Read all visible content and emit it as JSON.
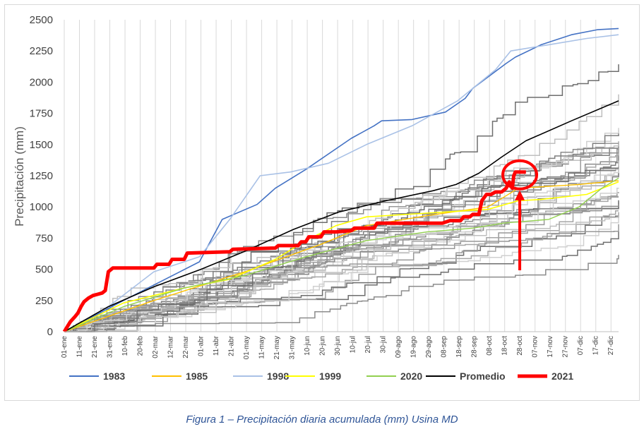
{
  "caption": "Figura 1 – Precipitación diaria acumulada (mm) Usina MD",
  "chart_data": {
    "type": "line",
    "title": "",
    "xlabel": "",
    "ylabel": "Precipitación (mm)",
    "ylim": [
      0,
      2500
    ],
    "yticks": [
      0,
      250,
      500,
      750,
      1000,
      1250,
      1500,
      1750,
      2000,
      2250,
      2500
    ],
    "grid": "vertical",
    "legend_position": "bottom",
    "x_ticks": [
      {
        "day": 1,
        "label": "01-ene"
      },
      {
        "day": 11,
        "label": "11-ene"
      },
      {
        "day": 21,
        "label": "21-ene"
      },
      {
        "day": 31,
        "label": "31-ene"
      },
      {
        "day": 41,
        "label": "10-feb"
      },
      {
        "day": 51,
        "label": "20-feb"
      },
      {
        "day": 61,
        "label": "02-mar"
      },
      {
        "day": 71,
        "label": "12-mar"
      },
      {
        "day": 81,
        "label": "22-mar"
      },
      {
        "day": 91,
        "label": "01-abr"
      },
      {
        "day": 101,
        "label": "11-abr"
      },
      {
        "day": 111,
        "label": "21-abr"
      },
      {
        "day": 121,
        "label": "01-may"
      },
      {
        "day": 131,
        "label": "11-may"
      },
      {
        "day": 141,
        "label": "21-may"
      },
      {
        "day": 151,
        "label": "31-may"
      },
      {
        "day": 161,
        "label": "10-jun"
      },
      {
        "day": 171,
        "label": "20-jun"
      },
      {
        "day": 181,
        "label": "30-jun"
      },
      {
        "day": 191,
        "label": "10-jul"
      },
      {
        "day": 201,
        "label": "20-jul"
      },
      {
        "day": 211,
        "label": "30-jul"
      },
      {
        "day": 221,
        "label": "09-ago"
      },
      {
        "day": 231,
        "label": "19-ago"
      },
      {
        "day": 241,
        "label": "29-ago"
      },
      {
        "day": 251,
        "label": "08-sep"
      },
      {
        "day": 261,
        "label": "18-sep"
      },
      {
        "day": 271,
        "label": "28-sep"
      },
      {
        "day": 281,
        "label": "08-oct"
      },
      {
        "day": 291,
        "label": "18-oct"
      },
      {
        "day": 301,
        "label": "28-oct"
      },
      {
        "day": 311,
        "label": "07-nov"
      },
      {
        "day": 321,
        "label": "17-nov"
      },
      {
        "day": 331,
        "label": "27-nov"
      },
      {
        "day": 341,
        "label": "07-dic"
      },
      {
        "day": 351,
        "label": "17-dic"
      },
      {
        "day": 361,
        "label": "27-dic"
      }
    ],
    "series": [
      {
        "name": "1983",
        "color": "#4472c4",
        "width": 1.6,
        "x": [
          1,
          40,
          90,
          105,
          128,
          140,
          160,
          190,
          205,
          210,
          230,
          252,
          265,
          270,
          292,
          298,
          315,
          335,
          352,
          366
        ],
        "y": [
          0,
          250,
          560,
          900,
          1020,
          1150,
          1300,
          1550,
          1650,
          1690,
          1700,
          1760,
          1870,
          1950,
          2150,
          2200,
          2300,
          2380,
          2420,
          2430
        ]
      },
      {
        "name": "1985",
        "color": "#ffc000",
        "width": 1.4,
        "x": [
          1,
          60,
          120,
          170,
          200,
          240,
          280,
          300,
          340,
          366
        ],
        "y": [
          0,
          250,
          480,
          700,
          850,
          930,
          1000,
          1150,
          1180,
          1210
        ]
      },
      {
        "name": "1998",
        "color": "#a9c1e6",
        "width": 1.6,
        "x": [
          1,
          30,
          60,
          90,
          110,
          130,
          150,
          175,
          200,
          230,
          260,
          285,
          295,
          320,
          345,
          366
        ],
        "y": [
          0,
          200,
          480,
          600,
          900,
          1250,
          1280,
          1350,
          1500,
          1650,
          1850,
          2100,
          2250,
          2300,
          2350,
          2380
        ]
      },
      {
        "name": "1999",
        "color": "#ffff00",
        "width": 1.6,
        "x": [
          1,
          40,
          80,
          110,
          140,
          160,
          180,
          200,
          240,
          280,
          300,
          315,
          345,
          366
        ],
        "y": [
          0,
          230,
          350,
          420,
          580,
          730,
          850,
          920,
          950,
          980,
          1050,
          1060,
          1100,
          1200
        ]
      },
      {
        "name": "2020",
        "color": "#92d050",
        "width": 1.4,
        "x": [
          1,
          40,
          80,
          120,
          160,
          200,
          240,
          270,
          290,
          320,
          340,
          355,
          366
        ],
        "y": [
          0,
          200,
          350,
          450,
          600,
          730,
          800,
          830,
          870,
          900,
          1000,
          1150,
          1230
        ]
      },
      {
        "name": "Promedio",
        "color": "#000000",
        "width": 1.6,
        "x": [
          1,
          30,
          60,
          91,
          121,
          152,
          182,
          213,
          244,
          259,
          274,
          289,
          305,
          335,
          366
        ],
        "y": [
          0,
          200,
          360,
          500,
          650,
          820,
          960,
          1050,
          1130,
          1180,
          1270,
          1400,
          1530,
          1690,
          1850
        ]
      },
      {
        "name": "2021",
        "color": "#ff0000",
        "width": 5,
        "x": [
          1,
          3,
          5,
          8,
          10,
          12,
          14,
          17,
          20,
          23,
          26,
          28,
          30,
          33,
          60,
          62,
          70,
          72,
          80,
          82,
          110,
          112,
          140,
          142,
          155,
          157,
          160,
          162,
          170,
          172,
          180,
          190,
          192,
          205,
          207,
          250,
          255,
          262,
          264,
          268,
          270,
          274,
          276,
          279,
          282,
          285,
          289,
          292,
          294,
          296,
          297,
          298,
          300,
          302,
          305
        ],
        "y": [
          0,
          40,
          80,
          120,
          150,
          200,
          240,
          270,
          290,
          300,
          310,
          330,
          480,
          510,
          510,
          540,
          540,
          580,
          580,
          630,
          640,
          660,
          670,
          690,
          690,
          720,
          720,
          760,
          760,
          800,
          800,
          810,
          830,
          830,
          870,
          870,
          890,
          890,
          920,
          920,
          940,
          940,
          1050,
          1100,
          1100,
          1120,
          1120,
          1150,
          1200,
          1150,
          1250,
          1280,
          1280,
          1280,
          1280
        ]
      }
    ],
    "background_years_color": "gray",
    "annotation": {
      "type": "circle-and-arrow",
      "target_day": 300,
      "target_value": 1280,
      "color": "#ff0000"
    }
  }
}
